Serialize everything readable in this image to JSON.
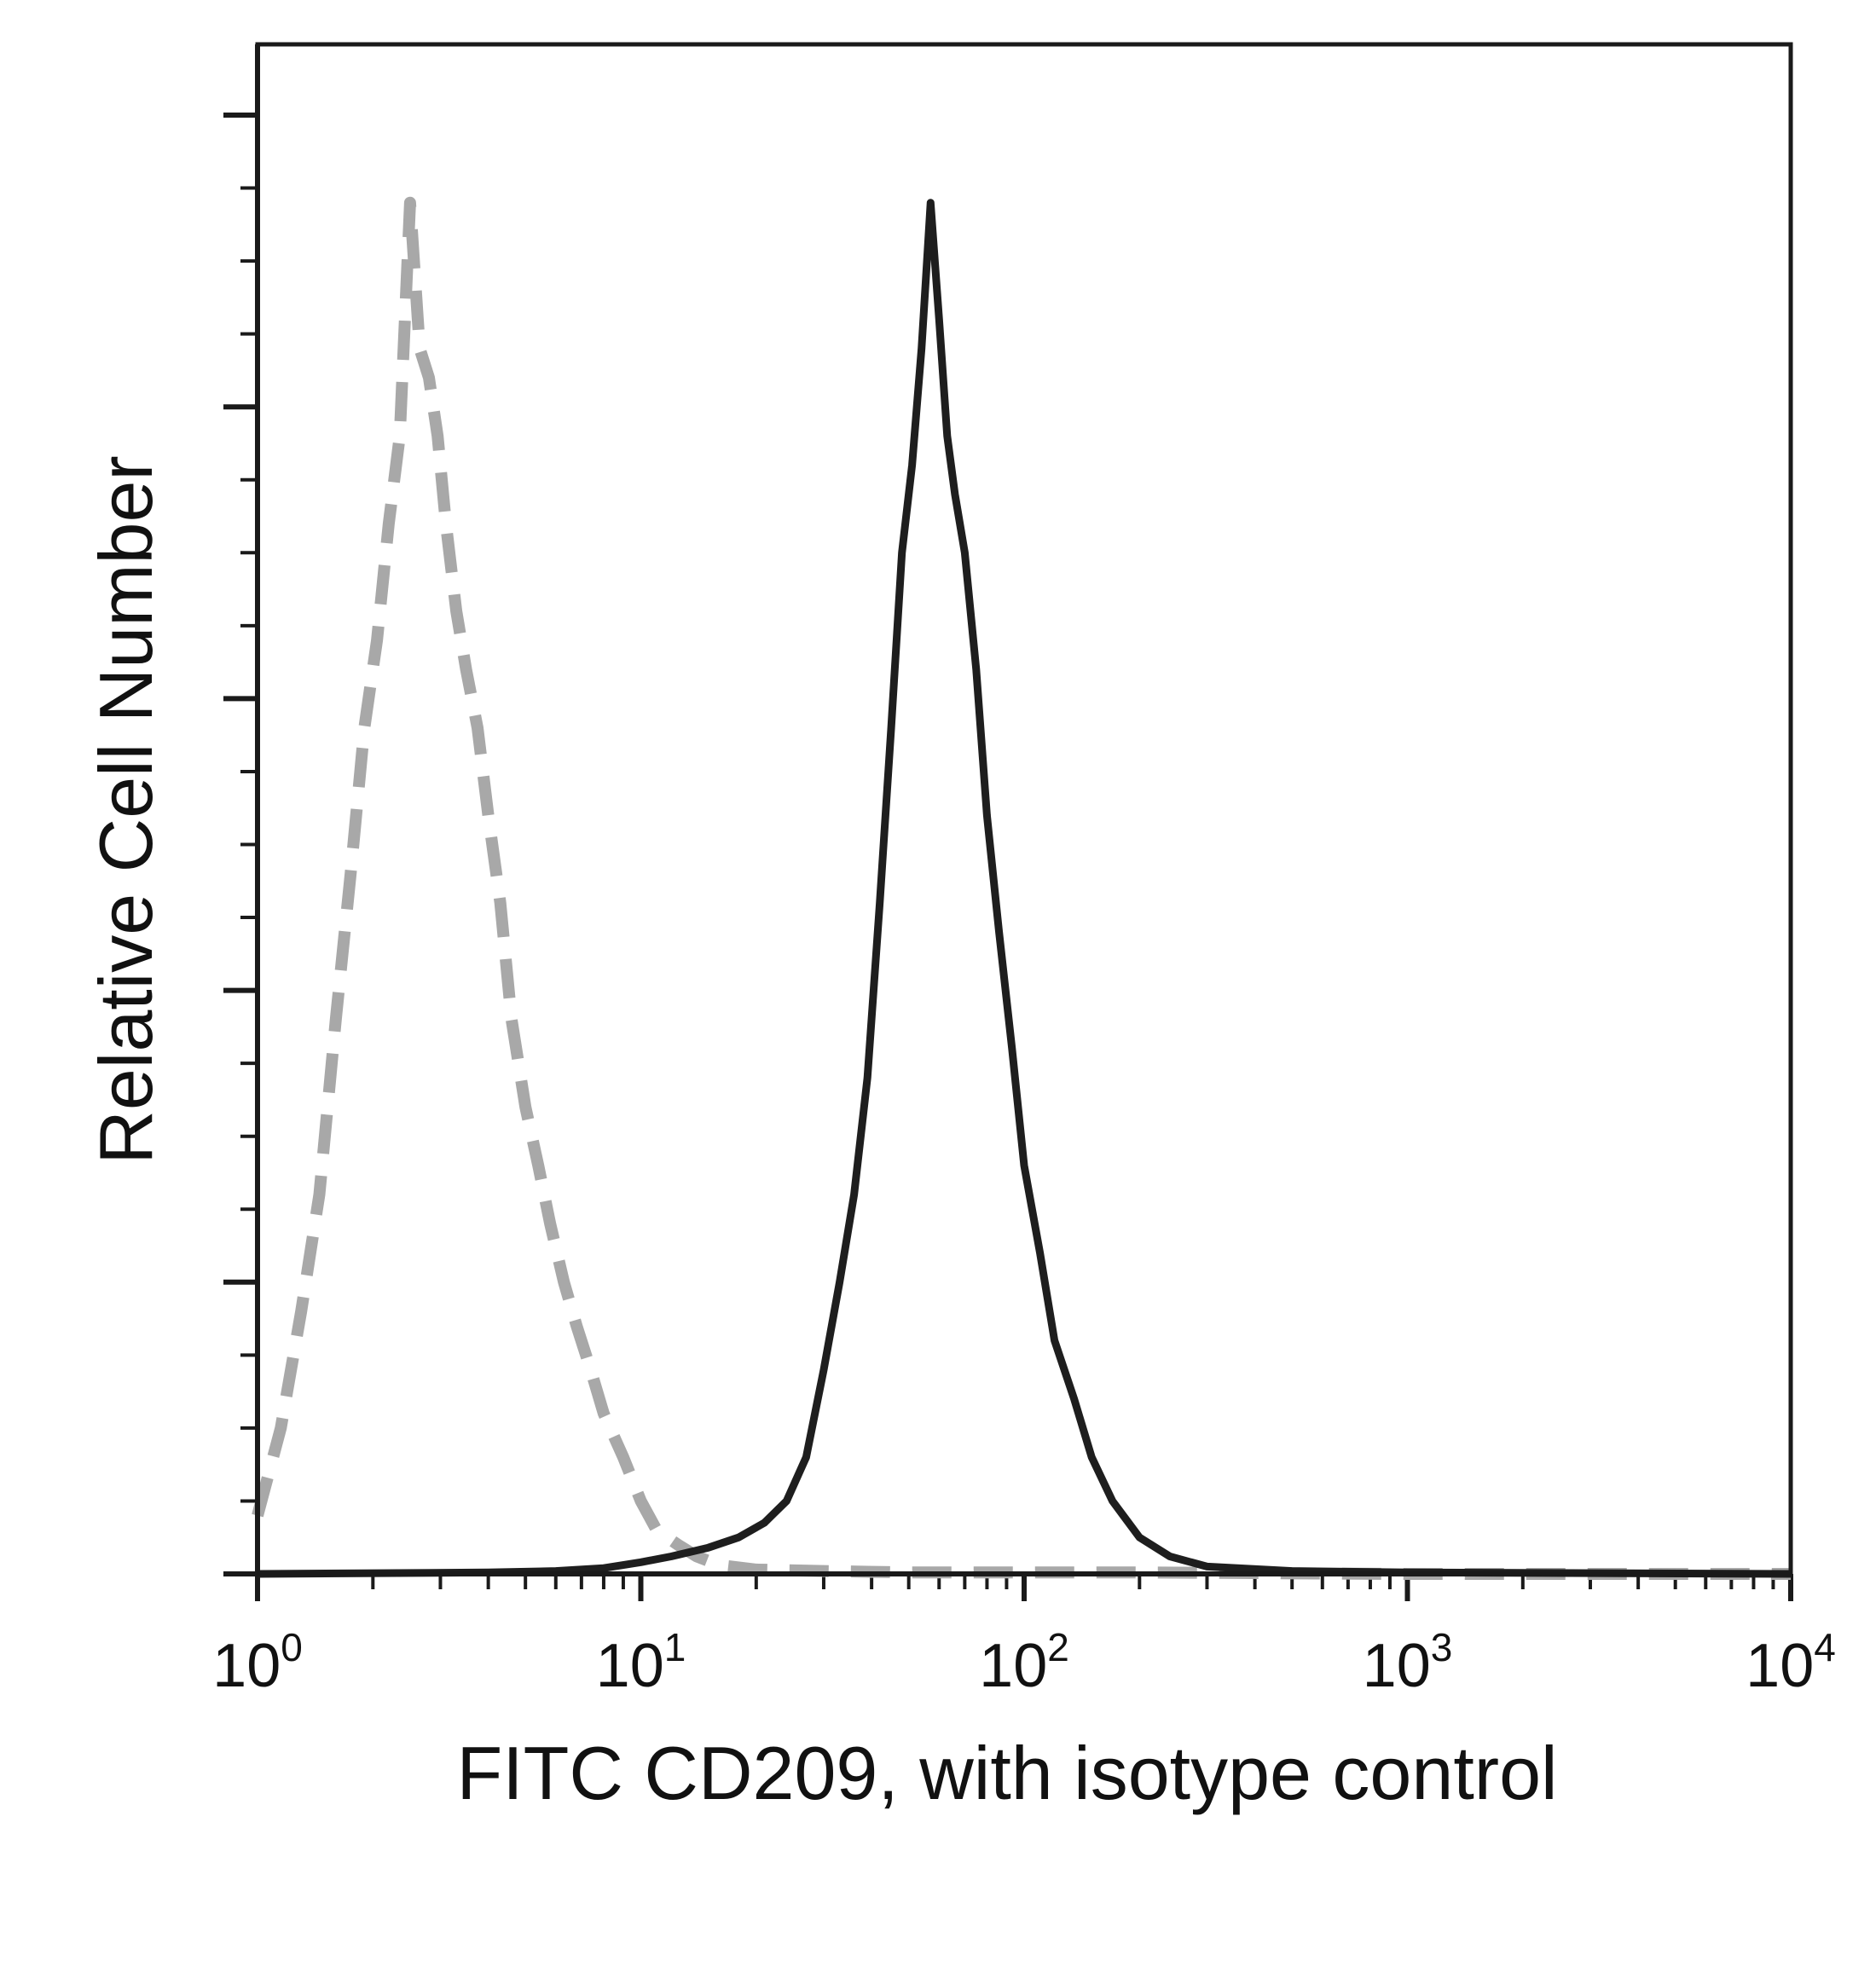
{
  "chart_data": {
    "type": "line",
    "title": "",
    "xlabel": "FITC CD209, with isotype control",
    "ylabel": "Relative Cell Number",
    "x_scale": "log",
    "xlim": [
      1,
      10000
    ],
    "ylim": [
      0,
      100
    ],
    "grid": false,
    "legend": "none",
    "x_ticks": [
      {
        "base": "10",
        "exp": "0"
      },
      {
        "base": "10",
        "exp": "1"
      },
      {
        "base": "10",
        "exp": "2"
      },
      {
        "base": "10",
        "exp": "3"
      },
      {
        "base": "10",
        "exp": "4"
      }
    ],
    "series": [
      {
        "style": "dashed",
        "color": "#a8a8a8",
        "x": [
          1.0,
          1.15,
          1.3,
          1.45,
          1.6,
          1.75,
          1.9,
          2.05,
          2.2,
          2.35,
          2.5,
          2.65,
          2.8,
          2.95,
          3.1,
          3.3,
          3.5,
          3.75,
          4.0,
          4.3,
          4.6,
          5.0,
          5.4,
          5.8,
          6.3,
          6.8,
          7.4,
          8.0,
          9.0,
          10.0,
          11.0,
          12.5,
          14.0,
          16.0,
          20.0,
          30.0,
          50.0,
          100.0,
          200.0,
          1000.0,
          10000.0
        ],
        "y": [
          4,
          10,
          18,
          26,
          38,
          48,
          58,
          64,
          72,
          78,
          94,
          84,
          82,
          78,
          72,
          66,
          62,
          58,
          52,
          46,
          38,
          32,
          28,
          24,
          20,
          17,
          14,
          11,
          8,
          5,
          3,
          2,
          1.2,
          0.6,
          0.3,
          0.2,
          0.1,
          0.1,
          0.1,
          0,
          0
        ]
      },
      {
        "style": "solid",
        "color": "#1e1e1e",
        "x": [
          1.0,
          4.0,
          6.0,
          8.0,
          10.0,
          12.0,
          15.0,
          18.0,
          21.0,
          24.0,
          27.0,
          30.0,
          33.0,
          36.0,
          39.0,
          42.0,
          45.0,
          48.0,
          51.0,
          54.0,
          57.0,
          60.0,
          63.0,
          66.0,
          70.0,
          75.0,
          80.0,
          86.0,
          93.0,
          100.0,
          110.0,
          120.0,
          135.0,
          150.0,
          170.0,
          200.0,
          240.0,
          300.0,
          500.0,
          1000.0,
          10000.0
        ],
        "y": [
          0,
          0.1,
          0.2,
          0.4,
          0.8,
          1.2,
          1.8,
          2.5,
          3.5,
          5,
          8,
          14,
          20,
          26,
          34,
          46,
          58,
          70,
          76,
          84,
          94,
          86,
          78,
          74,
          70,
          62,
          52,
          44,
          36,
          28,
          22,
          16,
          12,
          8,
          5,
          2.5,
          1.2,
          0.5,
          0.2,
          0.1,
          0
        ]
      }
    ]
  }
}
